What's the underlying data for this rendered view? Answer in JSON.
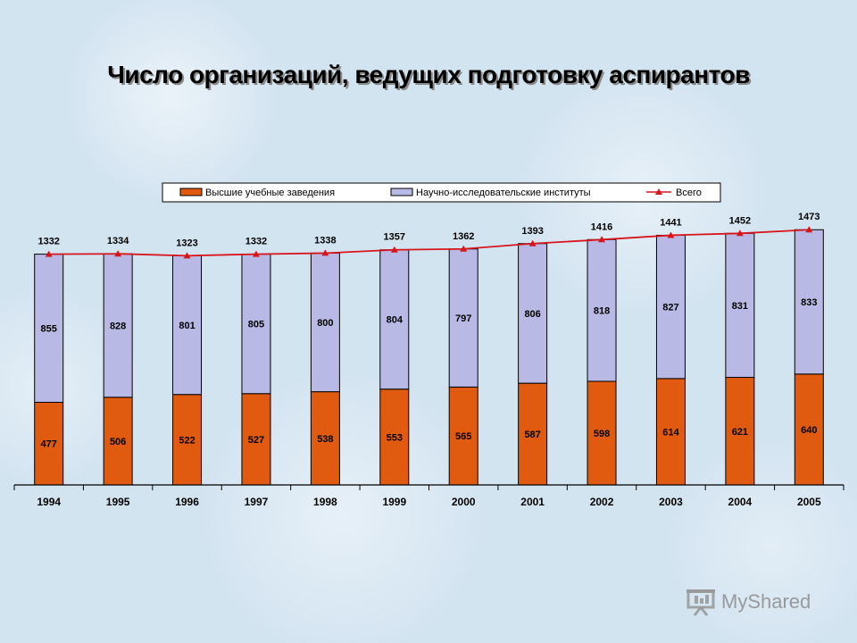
{
  "title": "Число организаций, ведущих подготовку аспирантов",
  "colors": {
    "universities": "#e05a10",
    "institutes": "#b9b9e6",
    "total": "#d7161c",
    "bar_border": "#000000"
  },
  "watermark": {
    "text": "MyShared"
  },
  "chart_data": {
    "type": "bar",
    "stacked": true,
    "title": "Число организаций, ведущих подготовку аспирантов",
    "categories": [
      "1994",
      "1995",
      "1996",
      "1997",
      "1998",
      "1999",
      "2000",
      "2001",
      "2002",
      "2003",
      "2004",
      "2005"
    ],
    "series": [
      {
        "name": "Высшие учебные заведения",
        "type": "bar",
        "values": [
          477,
          506,
          522,
          527,
          538,
          553,
          565,
          587,
          598,
          614,
          621,
          640
        ]
      },
      {
        "name": "Научно-исследовательские институты",
        "type": "bar",
        "values": [
          855,
          828,
          801,
          805,
          800,
          804,
          797,
          806,
          818,
          827,
          831,
          833
        ]
      },
      {
        "name": "Всего",
        "type": "line",
        "values": [
          1332,
          1334,
          1323,
          1332,
          1338,
          1357,
          1362,
          1393,
          1416,
          1441,
          1452,
          1473
        ]
      }
    ],
    "ylim": [
      0,
      1600
    ],
    "legend_position": "top",
    "grid": false
  }
}
